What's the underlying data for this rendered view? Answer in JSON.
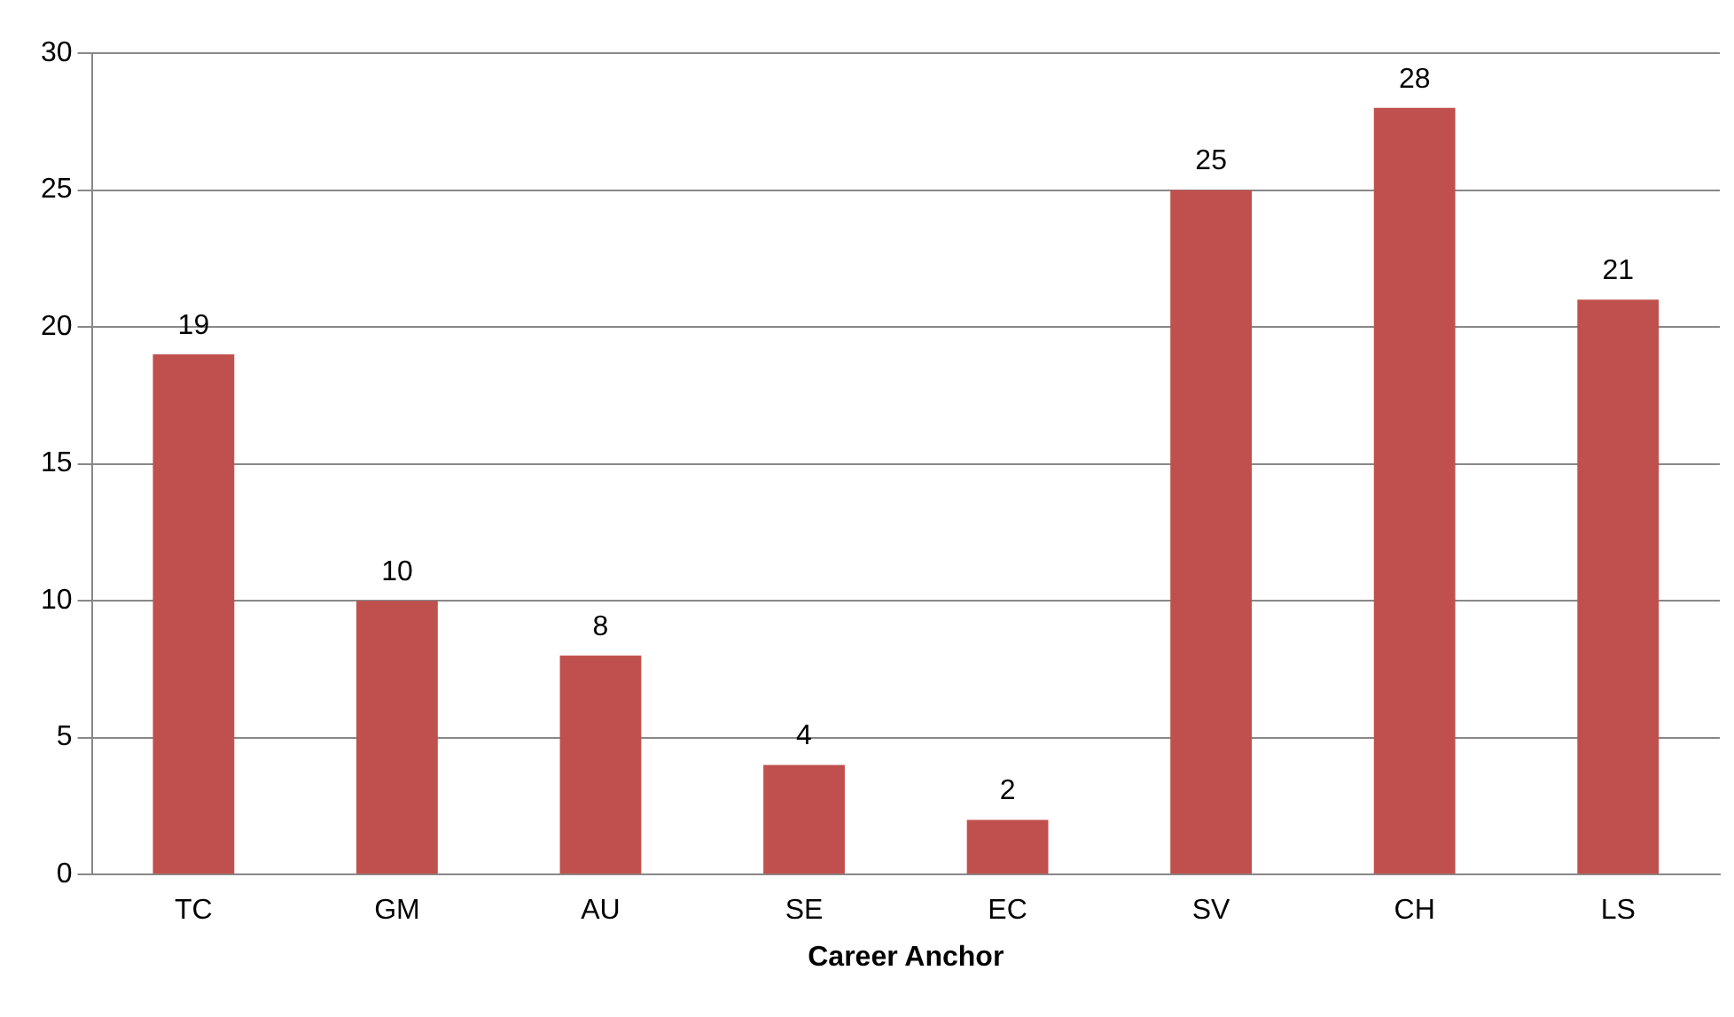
{
  "chart_data": {
    "type": "bar",
    "xlabel": "Career Anchor",
    "categories": [
      "TC",
      "GM",
      "AU",
      "SE",
      "EC",
      "SV",
      "CH",
      "LS"
    ],
    "values": [
      19,
      10,
      8,
      4,
      2,
      25,
      28,
      21
    ],
    "color": "#c0504d",
    "ylim": [
      0,
      30
    ],
    "yticks": [
      0,
      5,
      10,
      15,
      20,
      25,
      30
    ],
    "grid": "y",
    "legend": false,
    "data_labels": true
  }
}
